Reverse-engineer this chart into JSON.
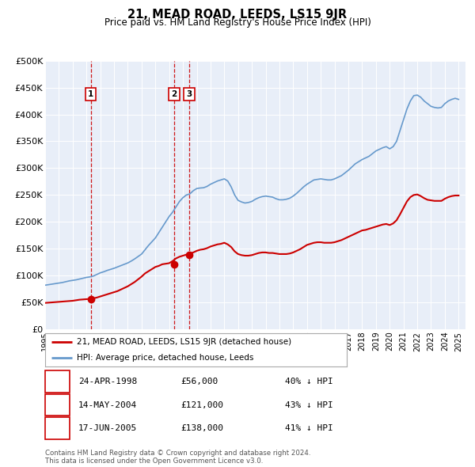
{
  "title": "21, MEAD ROAD, LEEDS, LS15 9JR",
  "subtitle": "Price paid vs. HM Land Registry's House Price Index (HPI)",
  "legend_house": "21, MEAD ROAD, LEEDS, LS15 9JR (detached house)",
  "legend_hpi": "HPI: Average price, detached house, Leeds",
  "house_color": "#cc0000",
  "hpi_color": "#6699cc",
  "bg_color": "#e8eef8",
  "sale_dates": [
    1998.31,
    2004.37,
    2005.46
  ],
  "sale_prices": [
    56000,
    121000,
    138000
  ],
  "sale_labels": [
    "1",
    "2",
    "3"
  ],
  "sale_info": [
    [
      "1",
      "24-APR-1998",
      "£56,000",
      "40% ↓ HPI"
    ],
    [
      "2",
      "14-MAY-2004",
      "£121,000",
      "43% ↓ HPI"
    ],
    [
      "3",
      "17-JUN-2005",
      "£138,000",
      "41% ↓ HPI"
    ]
  ],
  "footer": "Contains HM Land Registry data © Crown copyright and database right 2024.\nThis data is licensed under the Open Government Licence v3.0.",
  "ylim": [
    0,
    500000
  ],
  "yticks": [
    0,
    50000,
    100000,
    150000,
    200000,
    250000,
    300000,
    350000,
    400000,
    450000,
    500000
  ],
  "xmin": 1995.0,
  "xmax": 2025.5,
  "hpi_x": [
    1995.0,
    1995.25,
    1995.5,
    1995.75,
    1996.0,
    1996.25,
    1996.5,
    1996.75,
    1997.0,
    1997.25,
    1997.5,
    1997.75,
    1998.0,
    1998.25,
    1998.5,
    1998.75,
    1999.0,
    1999.25,
    1999.5,
    1999.75,
    2000.0,
    2000.25,
    2000.5,
    2000.75,
    2001.0,
    2001.25,
    2001.5,
    2001.75,
    2002.0,
    2002.25,
    2002.5,
    2002.75,
    2003.0,
    2003.25,
    2003.5,
    2003.75,
    2004.0,
    2004.25,
    2004.5,
    2004.75,
    2005.0,
    2005.25,
    2005.5,
    2005.75,
    2006.0,
    2006.25,
    2006.5,
    2006.75,
    2007.0,
    2007.25,
    2007.5,
    2007.75,
    2008.0,
    2008.25,
    2008.5,
    2008.75,
    2009.0,
    2009.25,
    2009.5,
    2009.75,
    2010.0,
    2010.25,
    2010.5,
    2010.75,
    2011.0,
    2011.25,
    2011.5,
    2011.75,
    2012.0,
    2012.25,
    2012.5,
    2012.75,
    2013.0,
    2013.25,
    2013.5,
    2013.75,
    2014.0,
    2014.25,
    2014.5,
    2014.75,
    2015.0,
    2015.25,
    2015.5,
    2015.75,
    2016.0,
    2016.25,
    2016.5,
    2016.75,
    2017.0,
    2017.25,
    2017.5,
    2017.75,
    2018.0,
    2018.25,
    2018.5,
    2018.75,
    2019.0,
    2019.25,
    2019.5,
    2019.75,
    2020.0,
    2020.25,
    2020.5,
    2020.75,
    2021.0,
    2021.25,
    2021.5,
    2021.75,
    2022.0,
    2022.25,
    2022.5,
    2022.75,
    2023.0,
    2023.25,
    2023.5,
    2023.75,
    2024.0,
    2024.25,
    2024.5,
    2024.75,
    2025.0
  ],
  "hpi_y": [
    82000,
    83000,
    84000,
    85000,
    86000,
    87000,
    88500,
    90000,
    91000,
    92000,
    93500,
    95000,
    96500,
    97500,
    99000,
    102000,
    105000,
    107000,
    109500,
    111500,
    113500,
    116000,
    118500,
    121000,
    123500,
    127000,
    131000,
    135500,
    140000,
    148000,
    156000,
    163000,
    170000,
    180000,
    190000,
    200000,
    210000,
    218000,
    228000,
    238000,
    245000,
    250000,
    252000,
    258000,
    262000,
    263000,
    263500,
    266000,
    270000,
    273000,
    276000,
    278000,
    280000,
    276000,
    265000,
    250000,
    240000,
    237000,
    235000,
    236000,
    238000,
    242000,
    245000,
    247000,
    248000,
    247000,
    246000,
    243000,
    241000,
    241000,
    242000,
    244000,
    248000,
    253000,
    259000,
    265000,
    270000,
    274000,
    278000,
    279000,
    280000,
    279000,
    278000,
    278000,
    280000,
    283000,
    286000,
    291000,
    296000,
    302000,
    308000,
    312000,
    316000,
    319000,
    322000,
    327000,
    332000,
    335000,
    338000,
    340000,
    336000,
    340000,
    350000,
    370000,
    390000,
    410000,
    425000,
    435000,
    436000,
    432000,
    425000,
    420000,
    415000,
    413000,
    412000,
    413000,
    420000,
    425000,
    428000,
    430000,
    428000
  ],
  "house_x": [
    1995.0,
    1995.25,
    1995.5,
    1995.75,
    1996.0,
    1996.25,
    1996.5,
    1996.75,
    1997.0,
    1997.25,
    1997.5,
    1997.75,
    1998.0,
    1998.25,
    1998.5,
    1998.75,
    1999.0,
    1999.25,
    1999.5,
    1999.75,
    2000.0,
    2000.25,
    2000.5,
    2000.75,
    2001.0,
    2001.25,
    2001.5,
    2001.75,
    2002.0,
    2002.25,
    2002.5,
    2002.75,
    2003.0,
    2003.25,
    2003.5,
    2003.75,
    2004.0,
    2004.25,
    2004.5,
    2004.75,
    2005.0,
    2005.25,
    2005.5,
    2005.75,
    2006.0,
    2006.25,
    2006.5,
    2006.75,
    2007.0,
    2007.25,
    2007.5,
    2007.75,
    2008.0,
    2008.25,
    2008.5,
    2008.75,
    2009.0,
    2009.25,
    2009.5,
    2009.75,
    2010.0,
    2010.25,
    2010.5,
    2010.75,
    2011.0,
    2011.25,
    2011.5,
    2011.75,
    2012.0,
    2012.25,
    2012.5,
    2012.75,
    2013.0,
    2013.25,
    2013.5,
    2013.75,
    2014.0,
    2014.25,
    2014.5,
    2014.75,
    2015.0,
    2015.25,
    2015.5,
    2015.75,
    2016.0,
    2016.25,
    2016.5,
    2016.75,
    2017.0,
    2017.25,
    2017.5,
    2017.75,
    2018.0,
    2018.25,
    2018.5,
    2018.75,
    2019.0,
    2019.25,
    2019.5,
    2019.75,
    2020.0,
    2020.25,
    2020.5,
    2020.75,
    2021.0,
    2021.25,
    2021.5,
    2021.75,
    2022.0,
    2022.25,
    2022.5,
    2022.75,
    2023.0,
    2023.25,
    2023.5,
    2023.75,
    2024.0,
    2024.25,
    2024.5,
    2024.75,
    2025.0
  ],
  "house_y": [
    49000,
    49500,
    50000,
    50500,
    51000,
    51500,
    52000,
    52500,
    53000,
    54000,
    55000,
    55500,
    56000,
    56500,
    57500,
    59000,
    61000,
    63000,
    65000,
    67000,
    69000,
    71000,
    74000,
    77000,
    80000,
    84000,
    88000,
    93000,
    98000,
    104000,
    108000,
    112000,
    116000,
    118000,
    121000,
    122000,
    123000,
    127000,
    132000,
    135000,
    137000,
    139000,
    141000,
    143000,
    146000,
    148000,
    149000,
    151000,
    154000,
    156000,
    158000,
    159000,
    161000,
    158000,
    153000,
    145000,
    140000,
    138000,
    137000,
    137000,
    138000,
    140000,
    142000,
    143000,
    143000,
    142000,
    142000,
    141000,
    140000,
    140000,
    140000,
    141000,
    143000,
    146000,
    149000,
    153000,
    157000,
    159000,
    161000,
    162000,
    162000,
    161000,
    161000,
    161000,
    162000,
    164000,
    166000,
    169000,
    172000,
    175000,
    178000,
    181000,
    184000,
    185000,
    187000,
    189000,
    191000,
    193000,
    195000,
    196000,
    194000,
    197000,
    203000,
    214000,
    226000,
    238000,
    246000,
    250000,
    251000,
    248000,
    244000,
    241000,
    240000,
    239000,
    239000,
    239000,
    243000,
    246000,
    248000,
    249000,
    249000
  ]
}
